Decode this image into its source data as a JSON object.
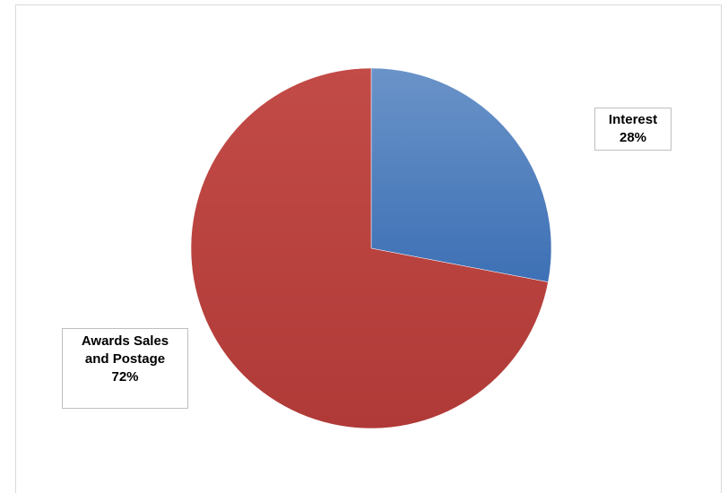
{
  "chart_data": {
    "type": "pie",
    "title": "",
    "categories": [
      "Interest",
      "Awards Sales and Postage"
    ],
    "values": [
      28,
      72
    ],
    "unit": "%",
    "colors": [
      "#4f81bd",
      "#c0504d"
    ],
    "legend": "none",
    "data_labels": [
      {
        "name": "Interest",
        "value": "28%"
      },
      {
        "name": "Awards Sales and Postage",
        "value": "72%"
      }
    ]
  }
}
